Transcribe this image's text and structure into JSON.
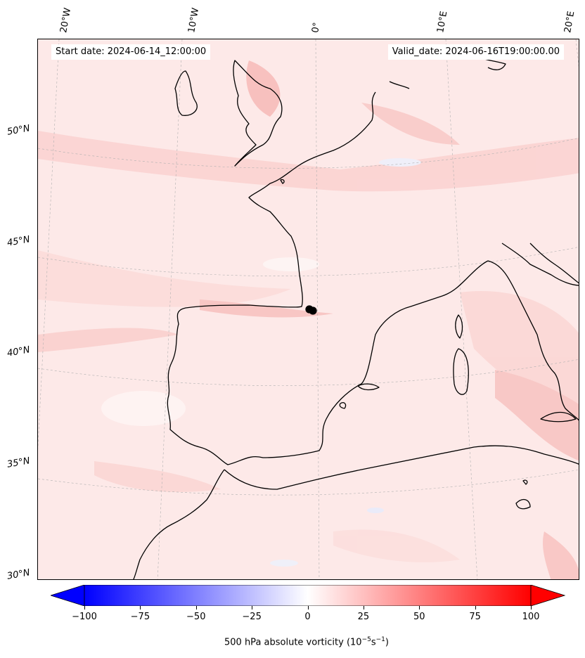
{
  "header": {
    "start_date": "Start date: 2024-06-14_12:00:00",
    "valid_date": "Valid_date: 2024-06-16T19:00:00.00"
  },
  "map": {
    "projection": "lambert-conformal",
    "longitude_labels": [
      "20°W",
      "10°W",
      "0°",
      "10°E",
      "20°E"
    ],
    "latitude_labels": [
      "50°N",
      "45°N",
      "40°N",
      "35°N",
      "30°N"
    ],
    "field": "500 hPa absolute vorticity",
    "colors": {
      "background": "#fde9e8",
      "coast": "#000000",
      "grid": "#b0b0b0"
    }
  },
  "colorbar": {
    "cmap": "bwr",
    "min": -100,
    "max": 100,
    "ticks": [
      "−100",
      "−75",
      "−50",
      "−25",
      "0",
      "25",
      "50",
      "75",
      "100"
    ],
    "label": "500 hPa absolute vorticity (10",
    "label_exp1": "−5",
    "label_mid": "s",
    "label_exp2": "−1",
    "label_end": ")",
    "low_color": "#0000ff",
    "high_color": "#ff0000"
  }
}
